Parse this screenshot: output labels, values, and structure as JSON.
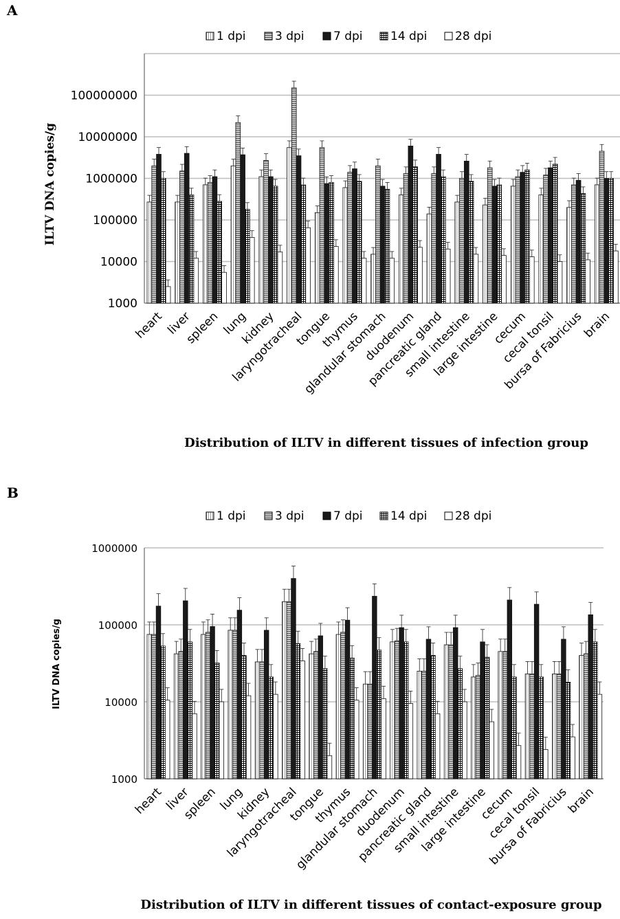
{
  "chart_data": [
    {
      "panel": "A",
      "type": "bar",
      "title": "Distribution of ILTV in different tissues of infection group",
      "ylabel": "ILTV DNA copies/g",
      "xlabel": "",
      "yscale": "log",
      "ylim": [
        1000,
        1000000000
      ],
      "yticks": [
        "1000",
        "10000",
        "100000",
        "1000000",
        "10000000",
        "100000000"
      ],
      "legend_position": "top",
      "grid": true,
      "categories": [
        "heart",
        "liver",
        "spleen",
        "lung",
        "kidney",
        "laryngotracheal",
        "tongue",
        "thymus",
        "glandular stomach",
        "duodenum",
        "pancreatic gland",
        "small intestine",
        "large intestine",
        "cecum",
        "cecal tonsil",
        "bursa of Fabricius",
        "brain"
      ],
      "series": [
        {
          "name": "1 dpi",
          "values": [
            270000,
            270000,
            700000,
            2000000,
            1100000,
            5500000,
            150000,
            600000,
            15000,
            400000,
            140000,
            270000,
            230000,
            650000,
            400000,
            200000,
            700000
          ]
        },
        {
          "name": "3 dpi",
          "values": [
            2000000,
            1500000,
            800000,
            22000000,
            2700000,
            150000000,
            5500000,
            1400000,
            2000000,
            1300000,
            1300000,
            1000000,
            1800000,
            1100000,
            1200000,
            700000,
            4500000
          ]
        },
        {
          "name": "7 dpi",
          "values": [
            3800000,
            4000000,
            1100000,
            3700000,
            1100000,
            3500000,
            750000,
            1700000,
            650000,
            6000000,
            3800000,
            2600000,
            650000,
            1400000,
            1800000,
            900000,
            1000000
          ]
        },
        {
          "name": "14 dpi",
          "values": [
            1000000,
            400000,
            280000,
            180000,
            650000,
            700000,
            800000,
            850000,
            550000,
            1900000,
            1100000,
            850000,
            700000,
            1600000,
            2200000,
            430000,
            1000000
          ]
        },
        {
          "name": "28 dpi",
          "values": [
            2500,
            12000,
            5500,
            38000,
            17000,
            65000,
            23000,
            12000,
            12000,
            22000,
            20000,
            15000,
            14000,
            13000,
            10000,
            11000,
            18000
          ]
        }
      ],
      "colors": {
        "1 dpi": "#f4f4f4",
        "3 dpi": "#b9b9b9",
        "7 dpi": "#1a1a1a",
        "14 dpi": "#7a7a7a",
        "28 dpi": "#ffffff"
      }
    },
    {
      "panel": "B",
      "type": "bar",
      "title": "Distribution of ILTV in different tissues of contact-exposure group",
      "ylabel": "ILTV DNA copies/g",
      "xlabel": "",
      "yscale": "log",
      "ylim": [
        1000,
        1000000
      ],
      "yticks": [
        "1000",
        "10000",
        "100000",
        "1000000"
      ],
      "legend_position": "top",
      "grid": true,
      "categories": [
        "heart",
        "liver",
        "spleen",
        "lung",
        "kidney",
        "laryngotracheal",
        "tongue",
        "thymus",
        "glandular stomach",
        "duodenum",
        "pancreatic gland",
        "small intestine",
        "large intestine",
        "cecum",
        "cecal tonsil",
        "bursa of Fabricius",
        "brain"
      ],
      "series": [
        {
          "name": "1 dpi",
          "values": [
            75000,
            42000,
            75000,
            85000,
            33000,
            200000,
            42000,
            75000,
            17000,
            60000,
            25000,
            55000,
            21000,
            45000,
            23000,
            23000,
            40000
          ]
        },
        {
          "name": "3 dpi",
          "values": [
            75000,
            45000,
            80000,
            85000,
            33000,
            200000,
            45000,
            80000,
            17000,
            62000,
            25000,
            55000,
            22000,
            45000,
            23000,
            23000,
            42000
          ]
        },
        {
          "name": "7 dpi",
          "values": [
            175000,
            205000,
            95000,
            155000,
            85000,
            400000,
            72000,
            115000,
            235000,
            92000,
            65000,
            92000,
            60000,
            210000,
            185000,
            65000,
            135000
          ]
        },
        {
          "name": "14 dpi",
          "values": [
            53000,
            60000,
            32000,
            40000,
            21000,
            57000,
            27000,
            37000,
            47000,
            60000,
            40000,
            27000,
            38000,
            21000,
            21000,
            18000,
            60000
          ]
        },
        {
          "name": "28 dpi",
          "values": [
            10500,
            7000,
            10000,
            12000,
            12500,
            34000,
            2000,
            10500,
            11000,
            9500,
            7000,
            10000,
            5500,
            2700,
            2400,
            3500,
            12500
          ]
        }
      ],
      "colors": {
        "1 dpi": "#f4f4f4",
        "3 dpi": "#b9b9b9",
        "7 dpi": "#1a1a1a",
        "14 dpi": "#7a7a7a",
        "28 dpi": "#ffffff"
      }
    }
  ]
}
